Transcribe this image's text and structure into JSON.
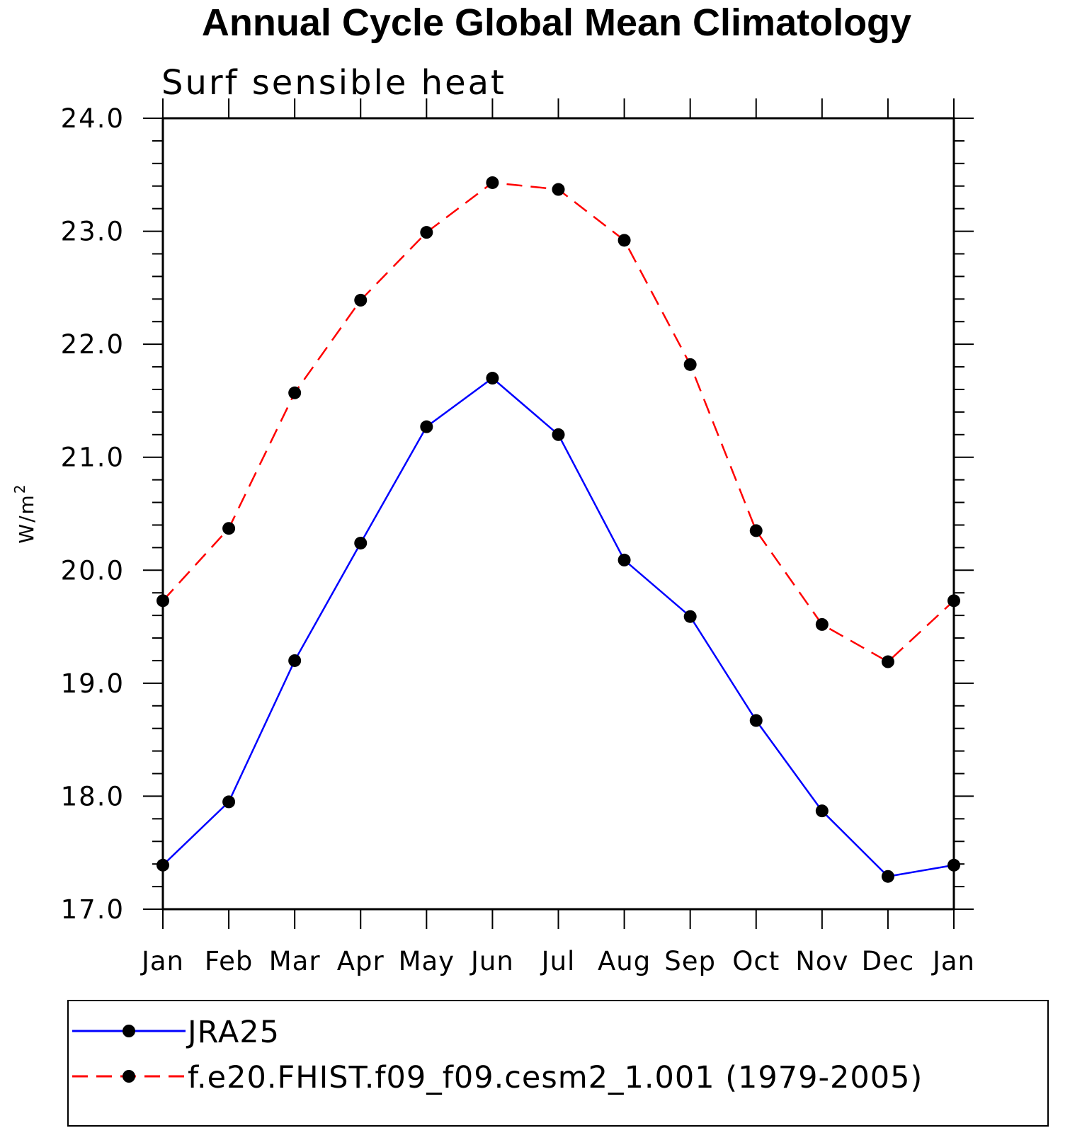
{
  "chart_data": {
    "type": "line",
    "title": "Annual Cycle Global Mean Climatology",
    "subtitle": "Surf sensible heat",
    "ylabel": "W/m",
    "ylabel_superscript": "2",
    "xlabel": "",
    "categories": [
      "Jan",
      "Feb",
      "Mar",
      "Apr",
      "May",
      "Jun",
      "Jul",
      "Aug",
      "Sep",
      "Oct",
      "Nov",
      "Dec",
      "Jan"
    ],
    "ylim": [
      17.0,
      24.0
    ],
    "yticks": [
      "17.0",
      "18.0",
      "19.0",
      "20.0",
      "21.0",
      "22.0",
      "23.0",
      "24.0"
    ],
    "grid": false,
    "legend_position": "bottom",
    "series": [
      {
        "name": "JRA25",
        "color": "#0000ff",
        "linestyle": "solid",
        "marker": "circle",
        "values": [
          17.39,
          17.95,
          19.2,
          20.24,
          21.27,
          21.7,
          21.2,
          20.09,
          19.59,
          18.67,
          17.87,
          17.29,
          17.39
        ]
      },
      {
        "name": "f.e20.FHIST.f09_f09.cesm2_1.001 (1979-2005)",
        "color": "#ff0000",
        "linestyle": "dashed",
        "marker": "circle",
        "values": [
          19.73,
          20.37,
          21.57,
          22.39,
          22.99,
          23.43,
          23.37,
          22.92,
          21.82,
          20.35,
          19.52,
          19.19,
          19.73
        ]
      }
    ]
  }
}
